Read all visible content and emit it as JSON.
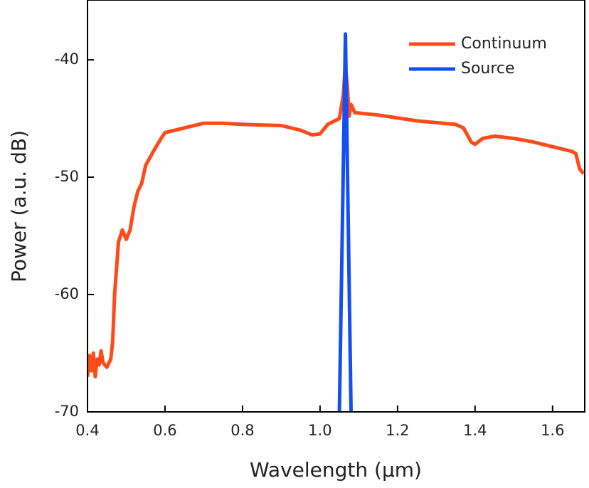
{
  "chart_data": {
    "type": "line",
    "xlabel": "Wavelength (μm)",
    "ylabel": "Power (a.u. dB)",
    "xlim": [
      0.4,
      1.683
    ],
    "ylim": [
      -70,
      -34.9
    ],
    "xticks": [
      {
        "value": 0.4,
        "label": "0.4"
      },
      {
        "value": 0.6,
        "label": "0.6"
      },
      {
        "value": 0.8,
        "label": "0.8"
      },
      {
        "value": 1.0,
        "label": "1.0"
      },
      {
        "value": 1.2,
        "label": "1.2"
      },
      {
        "value": 1.4,
        "label": "1.4"
      },
      {
        "value": 1.6,
        "label": "1.6"
      }
    ],
    "yticks": [
      -70,
      -60,
      -50,
      -40
    ],
    "legend": "upper right",
    "series": [
      {
        "name": "Continuum",
        "color": "#ff4a1a",
        "x": [
          0.4,
          0.405,
          0.41,
          0.415,
          0.42,
          0.425,
          0.43,
          0.435,
          0.44,
          0.45,
          0.46,
          0.465,
          0.47,
          0.48,
          0.49,
          0.5,
          0.51,
          0.52,
          0.53,
          0.54,
          0.55,
          0.57,
          0.59,
          0.6,
          0.65,
          0.7,
          0.75,
          0.8,
          0.9,
          0.95,
          0.98,
          1.0,
          1.02,
          1.05,
          1.06,
          1.065,
          1.07,
          1.075,
          1.08,
          1.09,
          1.15,
          1.25,
          1.35,
          1.37,
          1.39,
          1.4,
          1.42,
          1.45,
          1.5,
          1.55,
          1.6,
          1.65,
          1.66,
          1.67,
          1.68
        ],
        "values": [
          -67,
          -65.2,
          -66.5,
          -65,
          -67,
          -65.5,
          -66,
          -64.8,
          -65.8,
          -66.2,
          -65.5,
          -64,
          -60,
          -55.5,
          -54.5,
          -55.3,
          -54.5,
          -52.5,
          -51.2,
          -50.5,
          -49,
          -47.8,
          -46.7,
          -46.2,
          -45.8,
          -45.4,
          -45.4,
          -45.5,
          -45.6,
          -46.0,
          -46.4,
          -46.3,
          -45.5,
          -45.0,
          -43.0,
          -40.5,
          -42,
          -44.8,
          -43.8,
          -44.5,
          -44.7,
          -45.2,
          -45.5,
          -45.8,
          -47,
          -47.2,
          -46.7,
          -46.5,
          -46.7,
          -47,
          -47.4,
          -47.8,
          -48,
          -49.3,
          -49.7
        ]
      },
      {
        "name": "Source",
        "color": "#1450f0",
        "x": [
          1.05,
          1.0655,
          1.08
        ],
        "values": [
          -70,
          -37.8,
          -70
        ]
      }
    ]
  }
}
